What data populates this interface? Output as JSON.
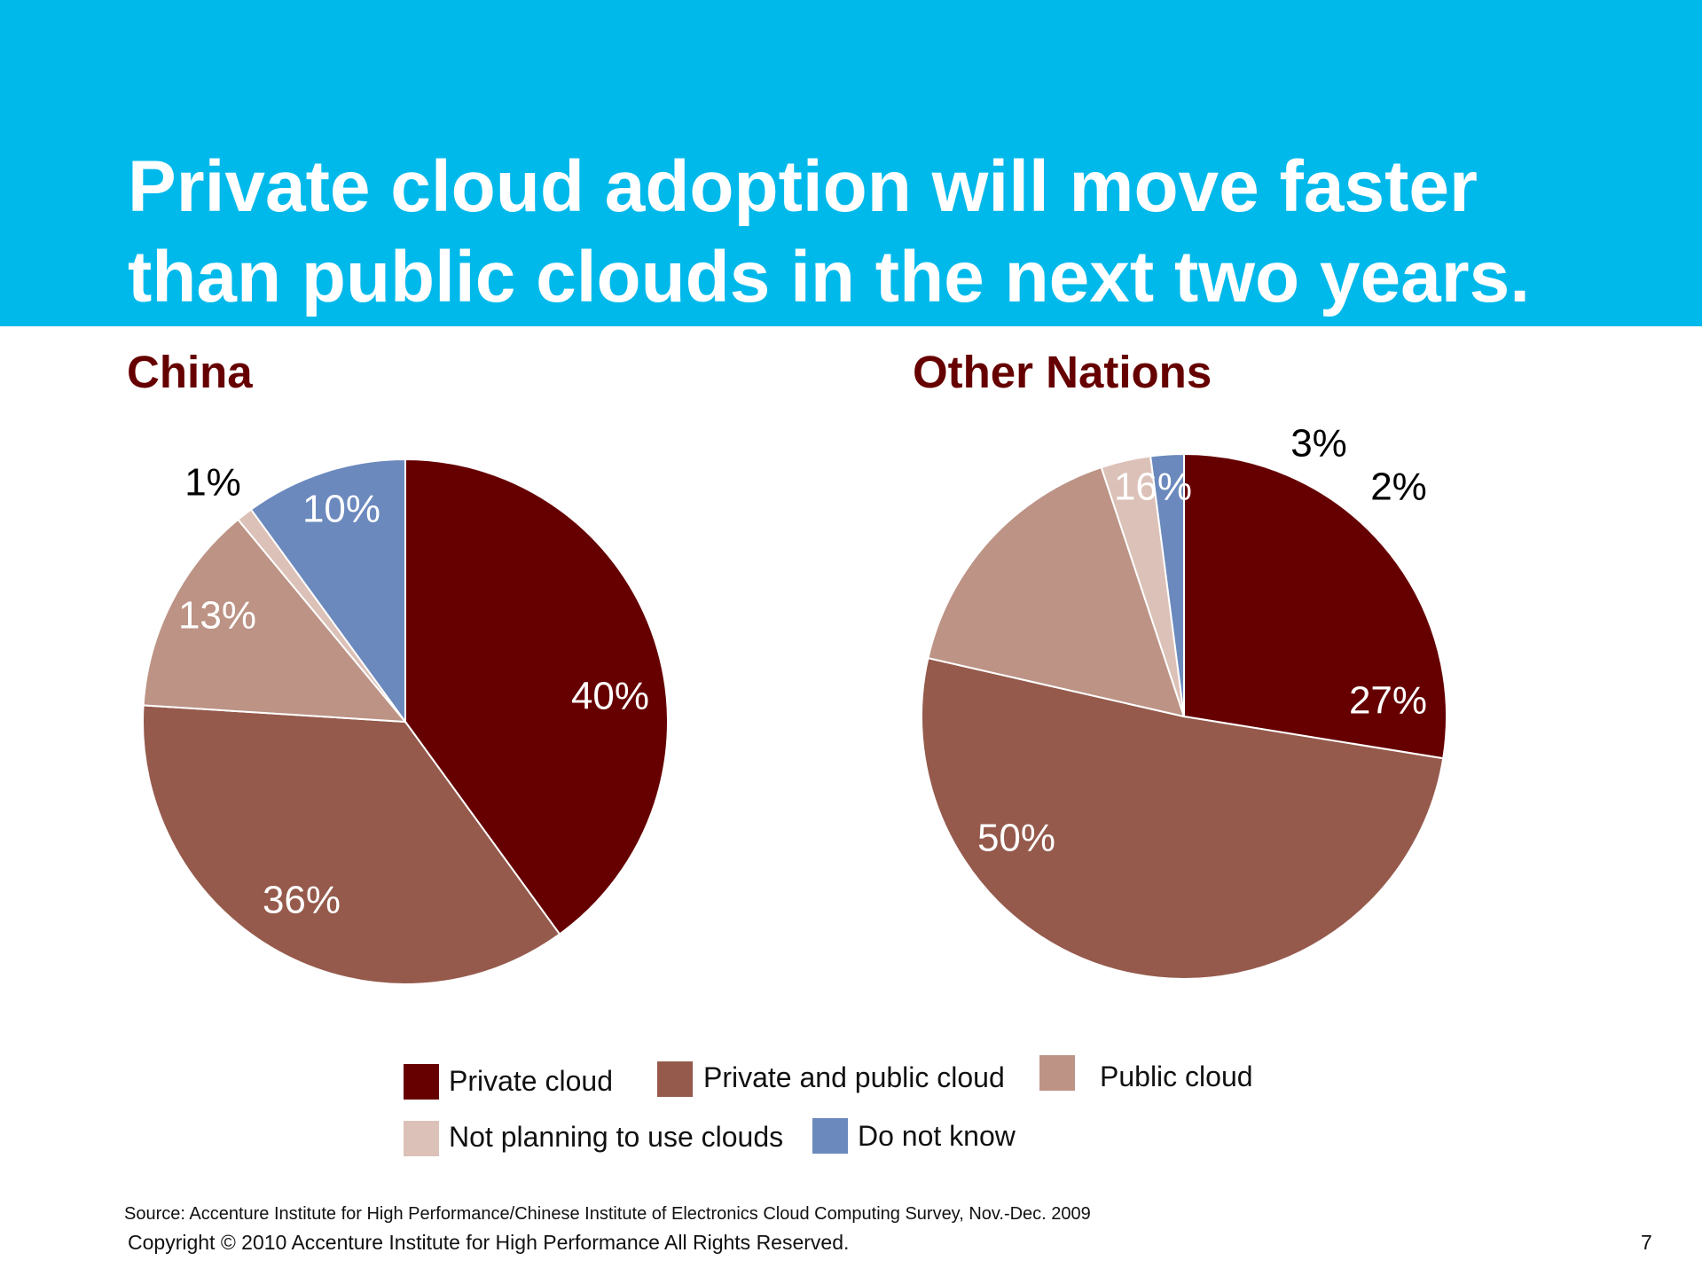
{
  "title_lines": [
    "Private cloud adoption will move faster",
    "than public clouds in the next two years."
  ],
  "colors": {
    "header_bg": "#00B9EB",
    "private_cloud": "#660000",
    "private_and_public": "#955A4C",
    "public_cloud": "#BC9385",
    "not_planning": "#DCC1B8",
    "do_not_know": "#6B89BD"
  },
  "chart_data": [
    {
      "type": "pie",
      "title": "China",
      "slices": [
        {
          "label": "Private cloud",
          "value": 40,
          "display": "40%"
        },
        {
          "label": "Private and public cloud",
          "value": 36,
          "display": "36%"
        },
        {
          "label": "Public cloud",
          "value": 13,
          "display": "13%"
        },
        {
          "label": "Not planning to use clouds",
          "value": 1,
          "display": "1%"
        },
        {
          "label": "Do not know",
          "value": 10,
          "display": "10%"
        }
      ]
    },
    {
      "type": "pie",
      "title": "Other Nations",
      "slices": [
        {
          "label": "Private cloud",
          "value": 27,
          "display": "27%"
        },
        {
          "label": "Private and public cloud",
          "value": 50,
          "display": "50%"
        },
        {
          "label": "Public cloud",
          "value": 16,
          "display": "16%"
        },
        {
          "label": "Not planning to use clouds",
          "value": 3,
          "display": "3%"
        },
        {
          "label": "Do not know",
          "value": 2,
          "display": "2%"
        }
      ]
    }
  ],
  "legend": [
    {
      "label": "Private cloud",
      "color": "#660000"
    },
    {
      "label": "Private and public cloud",
      "color": "#955A4C"
    },
    {
      "label": "Public cloud",
      "color": "#BC9385"
    },
    {
      "label": "Not planning to use clouds",
      "color": "#DCC1B8"
    },
    {
      "label": "Do not know",
      "color": "#6B89BD"
    }
  ],
  "footer": {
    "source": "Source: Accenture Institute for High Performance/Chinese Institute of Electronics Cloud Computing Survey, Nov.-Dec. 2009",
    "copyright": "Copyright © 2010 Accenture Institute for High Performance All Rights Reserved.",
    "page_number": "7"
  }
}
